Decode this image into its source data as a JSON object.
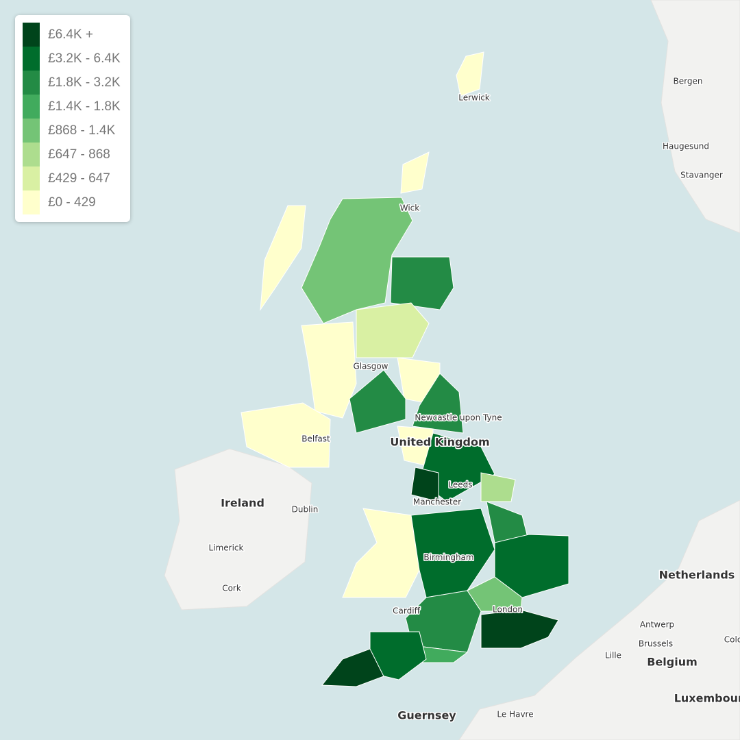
{
  "legend": {
    "items": [
      {
        "label": "£6.4K +",
        "color": "#00441b"
      },
      {
        "label": "£3.2K - 6.4K",
        "color": "#006d2c"
      },
      {
        "label": "£1.8K - 3.2K",
        "color": "#238b45"
      },
      {
        "label": "£1.4K - 1.8K",
        "color": "#41ab5d"
      },
      {
        "label": "£868 - 1.4K",
        "color": "#74c476"
      },
      {
        "label": "£647 - 868",
        "color": "#addd8e"
      },
      {
        "label": "£429 - 647",
        "color": "#d9f0a3"
      },
      {
        "label": "£0 - 429",
        "color": "#ffffcc"
      }
    ]
  },
  "cities": [
    "Lerwick",
    "Wick",
    "Glasgow",
    "Newcastle upon Tyne",
    "Belfast",
    "Leeds",
    "Manchester",
    "Dublin",
    "Birmingham",
    "Limerick",
    "Cork",
    "Cardiff",
    "London",
    "Bergen",
    "Haugesund",
    "Stavanger",
    "Antwerp",
    "Brussels",
    "Lille",
    "Colo",
    "Le Havre"
  ],
  "countries": [
    "United Kingdom",
    "Ireland",
    "Netherlands",
    "Belgium",
    "Luxembourg",
    "Guernsey"
  ]
}
